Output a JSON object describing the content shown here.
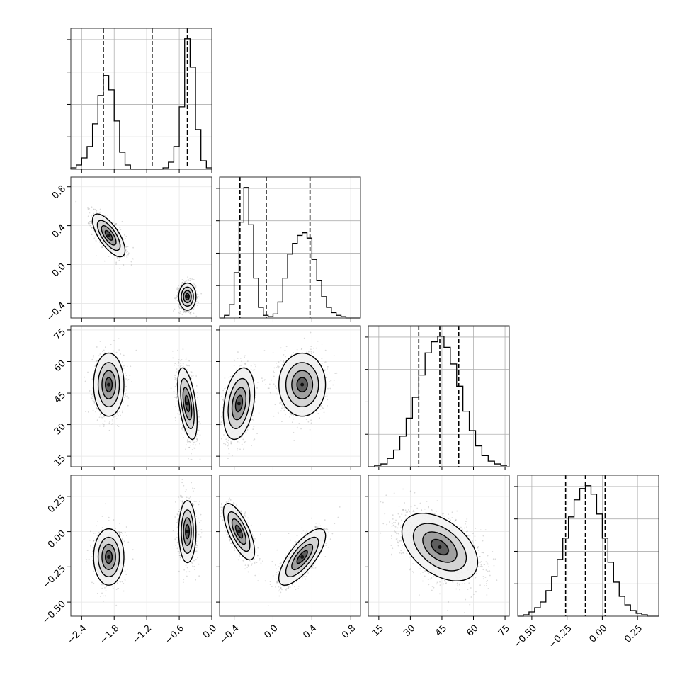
{
  "chart_data": {
    "type": "corner",
    "colors": {
      "line": "#000000",
      "grid": "#b0b0b0",
      "hist_fill": "none",
      "points": "#555555"
    },
    "grid": true,
    "parameters": [
      {
        "ticks": [
          "−2.4",
          "−1.8",
          "−1.2",
          "−0.6",
          "0.0"
        ],
        "tick_values": [
          -2.4,
          -1.8,
          -1.2,
          -0.6,
          0.0
        ],
        "range": [
          -2.6,
          0.0
        ],
        "quantiles": [
          -2.0,
          -1.1,
          -0.45
        ]
      },
      {
        "ticks": [
          "−0.4",
          "0.0",
          "0.4",
          "0.8"
        ],
        "tick_values": [
          -0.4,
          0.0,
          0.4,
          0.8
        ],
        "range": [
          -0.55,
          0.9
        ],
        "quantiles": [
          -0.34,
          -0.07,
          0.38
        ]
      },
      {
        "ticks": [
          "15",
          "30",
          "45",
          "60",
          "75"
        ],
        "tick_values": [
          15,
          30,
          45,
          60,
          75
        ],
        "range": [
          10,
          77
        ],
        "quantiles": [
          34,
          44,
          53
        ]
      },
      {
        "ticks": [
          "−0.50",
          "−0.25",
          "0.00",
          "0.25"
        ],
        "tick_values": [
          -0.5,
          -0.25,
          0.0,
          0.25
        ],
        "range": [
          -0.6,
          0.4
        ],
        "quantiles": [
          -0.26,
          -0.12,
          0.02
        ]
      }
    ],
    "histograms": [
      {
        "bin_edges": [
          -2.6,
          -2.5,
          -2.4,
          -2.3,
          -2.2,
          -2.1,
          -2.0,
          -1.9,
          -1.8,
          -1.7,
          -1.6,
          -1.5,
          -1.4,
          -1.3,
          -1.2,
          -1.1,
          -1.0,
          -0.9,
          -0.8,
          -0.7,
          -0.6,
          -0.5,
          -0.4,
          -0.3,
          -0.2,
          -0.1,
          0.0
        ],
        "counts": [
          0.01,
          0.03,
          0.08,
          0.16,
          0.32,
          0.52,
          0.66,
          0.56,
          0.34,
          0.12,
          0.03,
          0.0,
          0.0,
          0.0,
          0.0,
          0.0,
          0.0,
          0.01,
          0.05,
          0.16,
          0.44,
          0.92,
          0.72,
          0.28,
          0.06,
          0.01
        ]
      },
      {
        "bin_edges": [
          -0.55,
          -0.5,
          -0.45,
          -0.4,
          -0.35,
          -0.3,
          -0.25,
          -0.2,
          -0.15,
          -0.1,
          -0.05,
          0.0,
          0.05,
          0.1,
          0.15,
          0.2,
          0.25,
          0.3,
          0.35,
          0.4,
          0.45,
          0.5,
          0.55,
          0.6,
          0.65,
          0.7,
          0.75,
          0.8,
          0.85,
          0.9
        ],
        "counts": [
          0.0,
          0.02,
          0.1,
          0.34,
          0.72,
          0.98,
          0.7,
          0.3,
          0.08,
          0.02,
          0.01,
          0.03,
          0.12,
          0.3,
          0.48,
          0.56,
          0.62,
          0.64,
          0.6,
          0.44,
          0.28,
          0.16,
          0.08,
          0.04,
          0.02,
          0.01,
          0.0,
          0.0,
          0.0
        ]
      },
      {
        "bin_edges": [
          10,
          13,
          16,
          19,
          22,
          25,
          28,
          31,
          34,
          37,
          40,
          43,
          46,
          49,
          52,
          55,
          58,
          61,
          64,
          67,
          70,
          73,
          76
        ],
        "counts": [
          0.0,
          0.01,
          0.02,
          0.06,
          0.12,
          0.22,
          0.35,
          0.5,
          0.66,
          0.82,
          0.9,
          0.94,
          0.86,
          0.74,
          0.58,
          0.4,
          0.26,
          0.15,
          0.08,
          0.04,
          0.02,
          0.01
        ]
      },
      {
        "bin_edges": [
          -0.6,
          -0.56,
          -0.52,
          -0.48,
          -0.44,
          -0.4,
          -0.36,
          -0.32,
          -0.28,
          -0.24,
          -0.2,
          -0.16,
          -0.12,
          -0.08,
          -0.04,
          0.0,
          0.04,
          0.08,
          0.12,
          0.16,
          0.2,
          0.24,
          0.28,
          0.32,
          0.36,
          0.4
        ],
        "counts": [
          0.0,
          0.01,
          0.03,
          0.06,
          0.1,
          0.18,
          0.28,
          0.4,
          0.55,
          0.7,
          0.82,
          0.9,
          0.92,
          0.86,
          0.72,
          0.55,
          0.38,
          0.24,
          0.14,
          0.08,
          0.04,
          0.02,
          0.01,
          0.0,
          0.0
        ]
      }
    ],
    "scatter_panels": [
      {
        "row": 1,
        "col": 0,
        "modes": [
          {
            "mean": [
              -1.9,
              0.3
            ],
            "sd": [
              0.15,
              0.11
            ],
            "rho": -0.7,
            "n": 900
          },
          {
            "mean": [
              -0.45,
              -0.33
            ],
            "sd": [
              0.08,
              0.07
            ],
            "rho": 0.0,
            "n": 900
          }
        ]
      },
      {
        "row": 2,
        "col": 0,
        "modes": [
          {
            "mean": [
              -1.9,
              49
            ],
            "sd": [
              0.14,
              7.5
            ],
            "rho": 0.0,
            "n": 900
          },
          {
            "mean": [
              -0.45,
              40
            ],
            "sd": [
              0.09,
              8.5
            ],
            "rho": -0.5,
            "n": 900
          }
        ]
      },
      {
        "row": 2,
        "col": 1,
        "modes": [
          {
            "mean": [
              -0.35,
              40
            ],
            "sd": [
              0.08,
              8.5
            ],
            "rho": 0.3,
            "n": 900
          },
          {
            "mean": [
              0.3,
              49
            ],
            "sd": [
              0.12,
              7.5
            ],
            "rho": 0.0,
            "n": 900
          }
        ]
      },
      {
        "row": 3,
        "col": 0,
        "modes": [
          {
            "mean": [
              -1.9,
              -0.18
            ],
            "sd": [
              0.14,
              0.1
            ],
            "rho": 0.0,
            "n": 900
          },
          {
            "mean": [
              -0.45,
              0.0
            ],
            "sd": [
              0.08,
              0.11
            ],
            "rho": 0.0,
            "n": 900
          }
        ]
      },
      {
        "row": 3,
        "col": 1,
        "modes": [
          {
            "mean": [
              -0.35,
              0.0
            ],
            "sd": [
              0.08,
              0.1
            ],
            "rho": -0.7,
            "n": 900
          },
          {
            "mean": [
              0.3,
              -0.18
            ],
            "sd": [
              0.12,
              0.1
            ],
            "rho": 0.75,
            "n": 900
          }
        ]
      },
      {
        "row": 3,
        "col": 2,
        "modes": [
          {
            "mean": [
              44,
              -0.11
            ],
            "sd": [
              9,
              0.12
            ],
            "rho": -0.45,
            "n": 1800
          }
        ]
      }
    ]
  }
}
